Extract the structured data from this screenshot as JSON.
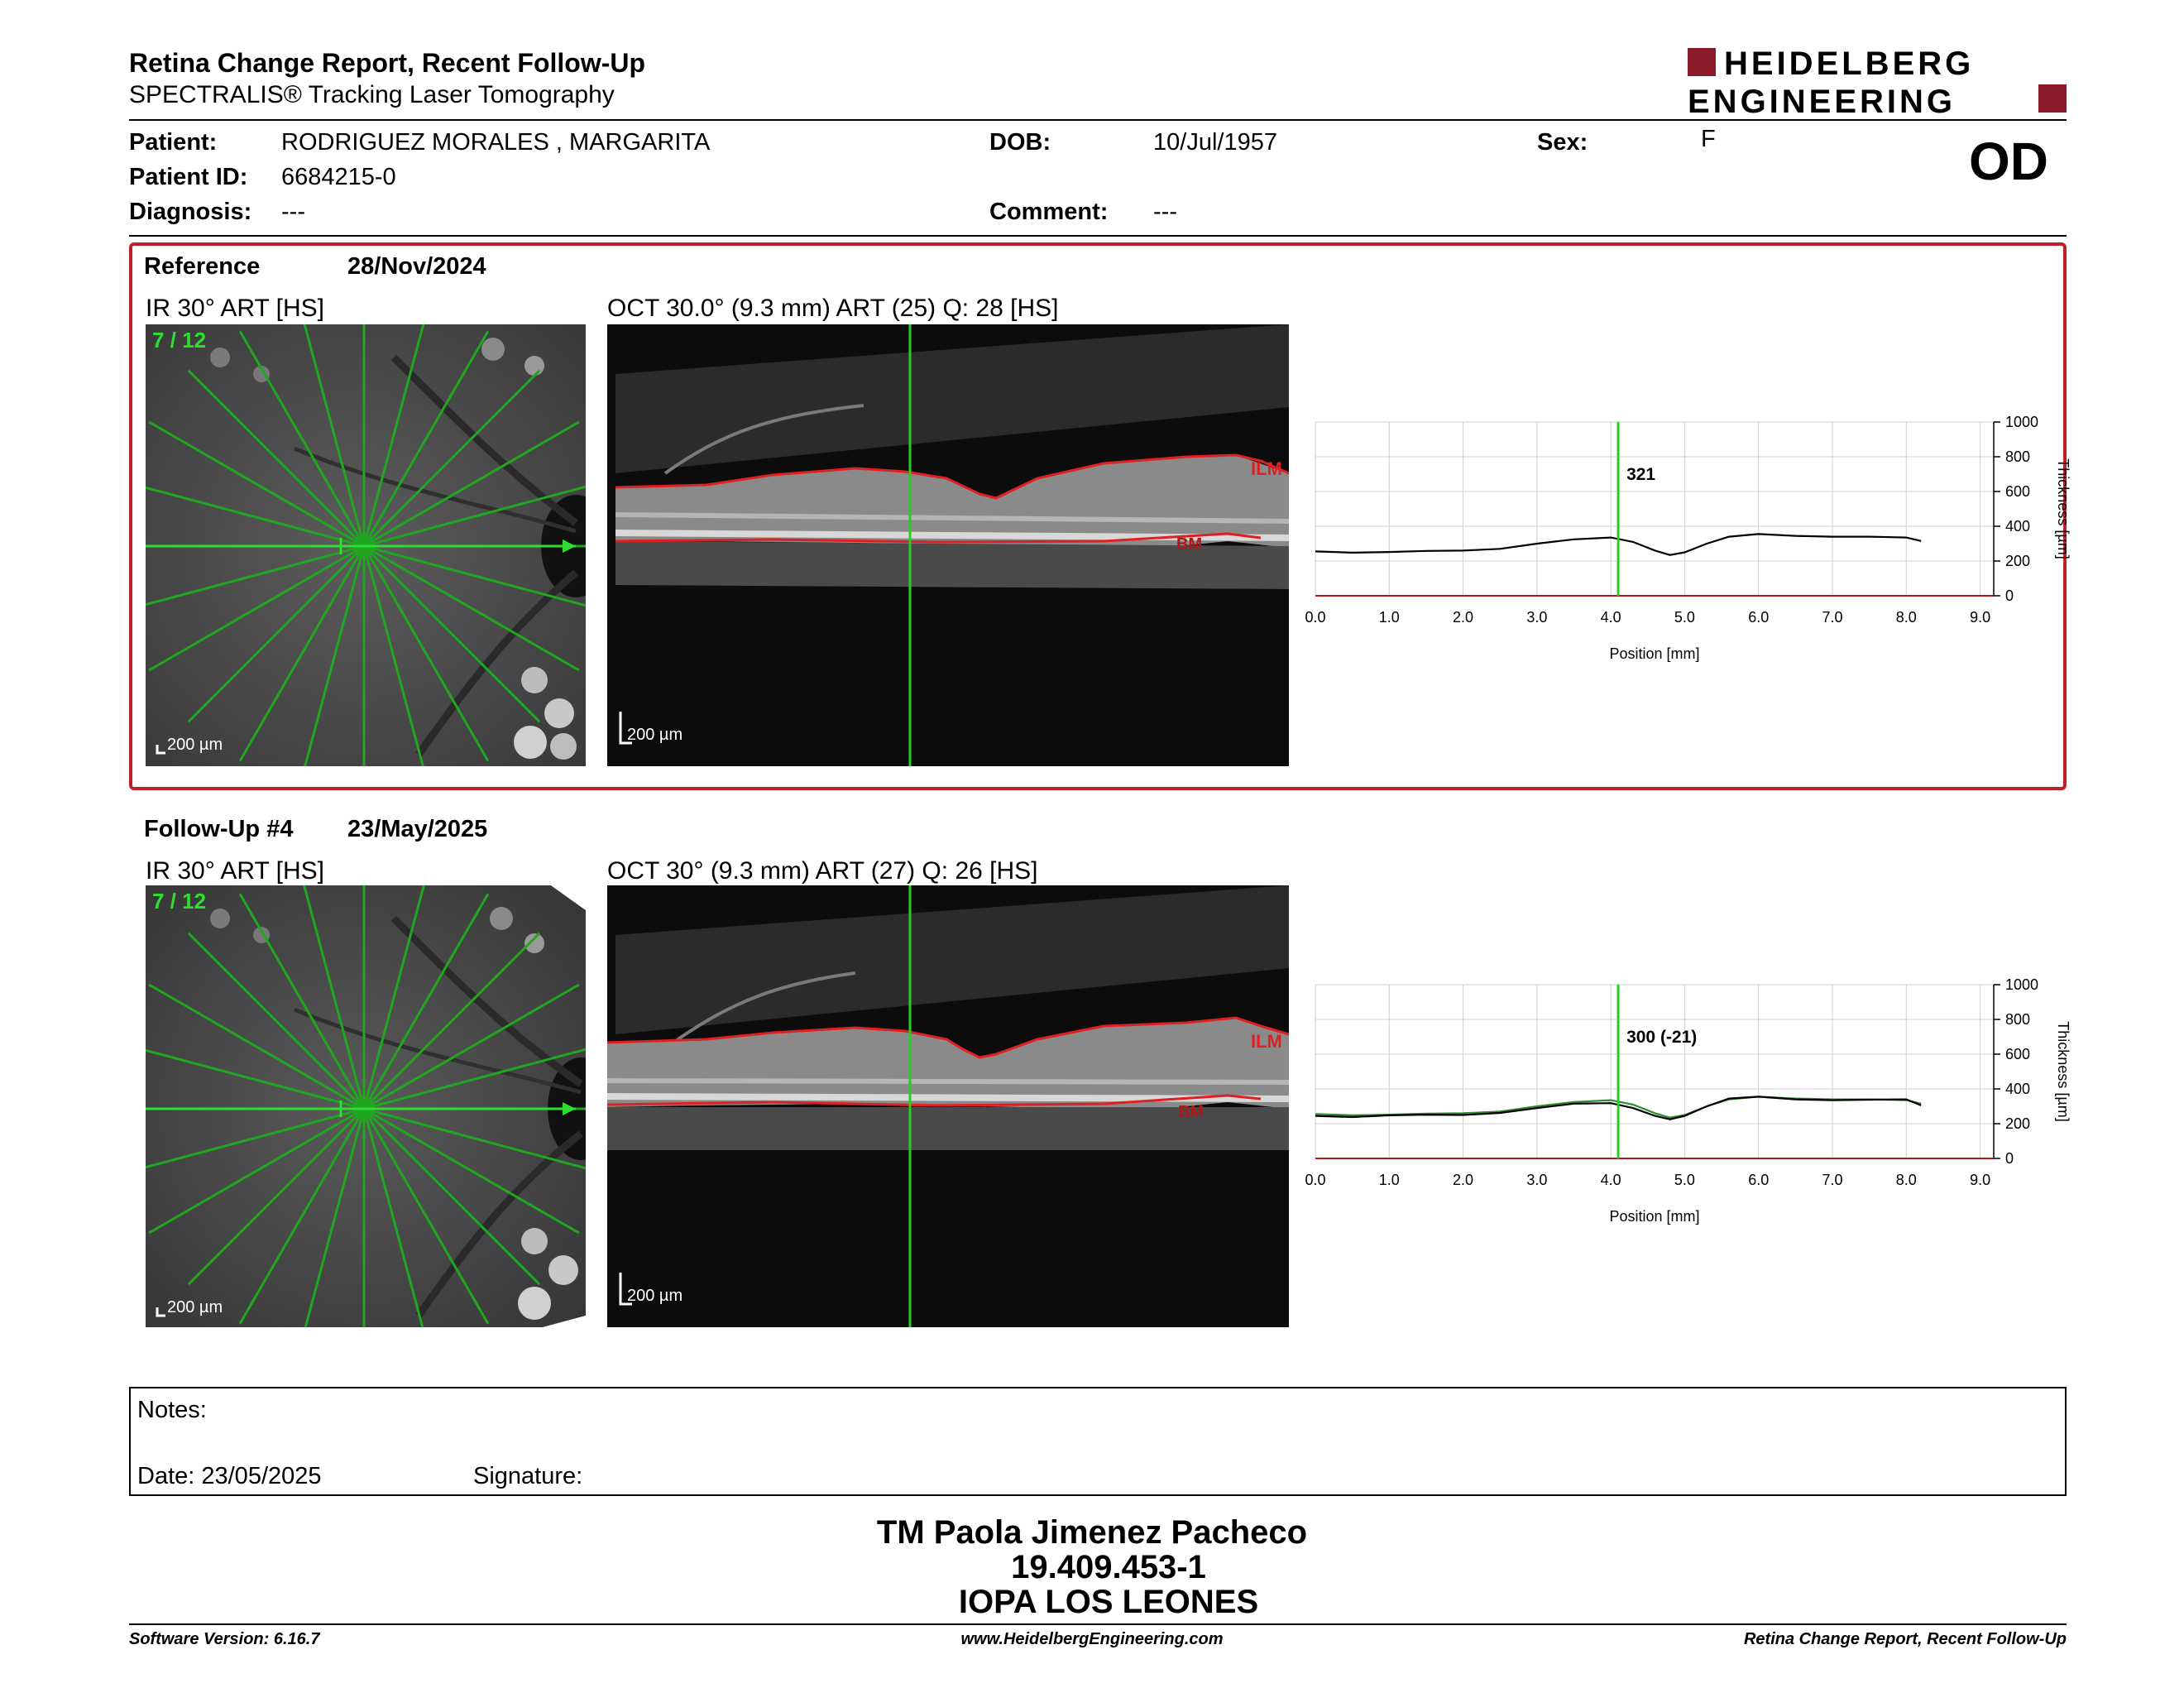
{
  "header": {
    "title": "Retina Change Report, Recent Follow-Up",
    "subtitle": "SPECTRALIS® Tracking Laser Tomography",
    "logo_line1": "HEIDELBERG",
    "logo_line2": "ENGINEERING",
    "eye": "OD"
  },
  "patient": {
    "patient_label": "Patient:",
    "patient_value": "RODRIGUEZ MORALES , MARGARITA",
    "id_label": "Patient ID:",
    "id_value": "6684215-0",
    "diagnosis_label": "Diagnosis:",
    "diagnosis_value": "---",
    "dob_label": "DOB:",
    "dob_value": "10/Jul/1957",
    "comment_label": "Comment:",
    "comment_value": "---",
    "sex_label": "Sex:",
    "sex_value": "F"
  },
  "reference": {
    "label": "Reference",
    "date": "28/Nov/2024",
    "ir_title": "IR 30° ART [HS]",
    "ir_counter": "7 / 12",
    "ir_scale": "200 µm",
    "oct_title": "OCT 30.0° (9.3 mm) ART (25) Q: 28 [HS]",
    "oct_scale": "200 µm",
    "ilm": "ILM",
    "bm": "BM"
  },
  "followup": {
    "label": "Follow-Up #4",
    "date": "23/May/2025",
    "ir_title": "IR 30° ART [HS]",
    "ir_counter": "7 / 12",
    "ir_scale": "200 µm",
    "oct_title": "OCT 30° (9.3 mm) ART (27) Q: 26 [HS]",
    "oct_scale": "200 µm",
    "ilm": "ILM",
    "bm": "BM"
  },
  "chart_data": [
    {
      "type": "line",
      "xlabel": "Position [mm]",
      "ylabel": "Thickness [µm]",
      "xlim": [
        0,
        9.0
      ],
      "ylim": [
        0,
        1000
      ],
      "xticks": [
        "0.0",
        "1.0",
        "2.0",
        "3.0",
        "4.0",
        "5.0",
        "6.0",
        "7.0",
        "8.0",
        "9.0"
      ],
      "yticks": [
        "0",
        "200",
        "400",
        "600",
        "800",
        "1000"
      ],
      "cursor_x": 4.1,
      "cursor_label": "321",
      "grid": true,
      "series": [
        {
          "color": "#000000",
          "x": [
            0.0,
            0.5,
            1.0,
            1.5,
            2.0,
            2.5,
            3.0,
            3.5,
            4.0,
            4.3,
            4.6,
            4.8,
            5.0,
            5.3,
            5.6,
            6.0,
            6.5,
            7.0,
            7.5,
            8.0,
            8.2
          ],
          "y": [
            255,
            248,
            252,
            258,
            260,
            270,
            300,
            325,
            335,
            310,
            260,
            235,
            250,
            300,
            340,
            355,
            345,
            340,
            340,
            335,
            315
          ]
        }
      ]
    },
    {
      "type": "line",
      "xlabel": "Position [mm]",
      "ylabel": "Thickness [µm]",
      "xlim": [
        0,
        9.0
      ],
      "ylim": [
        0,
        1000
      ],
      "xticks": [
        "0.0",
        "1.0",
        "2.0",
        "3.0",
        "4.0",
        "5.0",
        "6.0",
        "7.0",
        "8.0",
        "9.0"
      ],
      "yticks": [
        "0",
        "200",
        "400",
        "600",
        "800",
        "1000"
      ],
      "cursor_x": 4.1,
      "cursor_label": "300 (-21)",
      "grid": true,
      "series": [
        {
          "color": "#2e8b2e",
          "x": [
            0.0,
            0.5,
            1.0,
            1.5,
            2.0,
            2.5,
            3.0,
            3.5,
            4.0,
            4.3,
            4.6,
            4.8,
            5.0,
            5.3,
            5.6,
            6.0,
            6.5,
            7.0,
            7.5,
            8.0,
            8.2
          ],
          "y": [
            255,
            248,
            252,
            258,
            260,
            270,
            300,
            325,
            335,
            310,
            260,
            235,
            250,
            300,
            340,
            355,
            345,
            340,
            340,
            335,
            315
          ]
        },
        {
          "color": "#000000",
          "x": [
            0.0,
            0.5,
            1.0,
            1.5,
            2.0,
            2.5,
            3.0,
            3.5,
            4.0,
            4.3,
            4.6,
            4.8,
            5.0,
            5.3,
            5.6,
            6.0,
            6.5,
            7.0,
            7.5,
            8.0,
            8.2
          ],
          "y": [
            245,
            238,
            248,
            252,
            250,
            262,
            290,
            315,
            318,
            290,
            245,
            225,
            245,
            300,
            345,
            355,
            340,
            335,
            338,
            340,
            305
          ]
        }
      ]
    }
  ],
  "notes": {
    "notes_label": "Notes:",
    "date_label": "Date: 23/05/2025",
    "signature_label": "Signature:"
  },
  "signer": {
    "name": "TM Paola Jimenez Pacheco",
    "id": "19.409.453-1",
    "org": "IOPA LOS LEONES"
  },
  "footer": {
    "software": "Software Version: 6.16.7",
    "website": "www.HeidelbergEngineering.com",
    "report": "Retina Change Report, Recent Follow-Up"
  },
  "colors": {
    "accent": "#c0202a",
    "brand": "#8b1a2b",
    "scan_green": "#22c022",
    "layer_red": "#e02020"
  }
}
